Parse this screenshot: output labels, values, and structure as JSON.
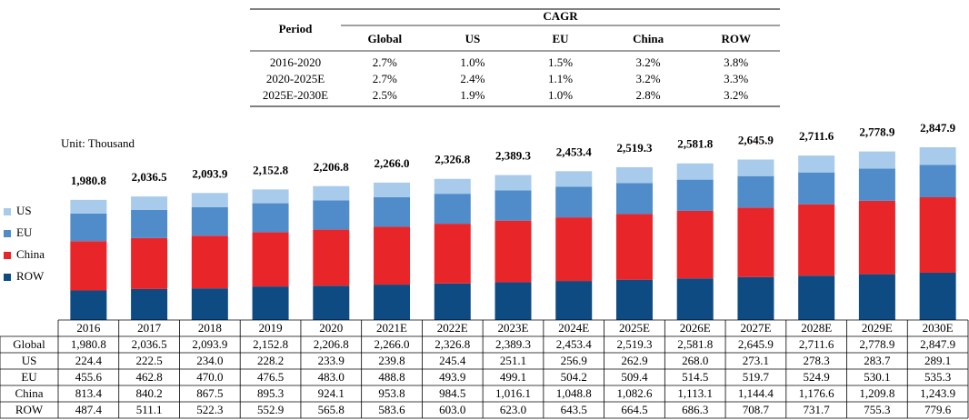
{
  "cagr_table": {
    "period_header": "Period",
    "group_header": "CAGR",
    "columns": [
      "Global",
      "US",
      "EU",
      "China",
      "ROW"
    ],
    "rows": [
      [
        "2016-2020",
        "2.7%",
        "1.0%",
        "1.5%",
        "3.2%",
        "3.8%"
      ],
      [
        "2020-2025E",
        "2.7%",
        "2.4%",
        "1.1%",
        "3.2%",
        "3.3%"
      ],
      [
        "2025E-2030E",
        "2.5%",
        "1.9%",
        "1.0%",
        "2.8%",
        "3.2%"
      ]
    ]
  },
  "chart_data": {
    "type": "stacked_bar",
    "unit_label": "Unit: Thousand",
    "categories": [
      "2016",
      "2017",
      "2018",
      "2019",
      "2020",
      "2021E",
      "2022E",
      "2023E",
      "2024E",
      "2025E",
      "2026E",
      "2027E",
      "2028E",
      "2029E",
      "2030E"
    ],
    "total": {
      "name": "Global",
      "values": [
        1980.8,
        2036.5,
        2093.9,
        2152.8,
        2206.8,
        2266.0,
        2326.8,
        2389.3,
        2453.4,
        2519.3,
        2581.8,
        2645.9,
        2711.6,
        2778.9,
        2847.9
      ],
      "value_labels": [
        "1,980.8",
        "2,036.5",
        "2,093.9",
        "2,152.8",
        "2,206.8",
        "2,266.0",
        "2,326.8",
        "2,389.3",
        "2,453.4",
        "2,519.3",
        "2,581.8",
        "2,645.9",
        "2,711.6",
        "2,778.9",
        "2,847.9"
      ]
    },
    "series": [
      {
        "name": "ROW",
        "color": "#0e4b82",
        "values": [
          487.4,
          511.1,
          522.3,
          552.9,
          565.8,
          583.6,
          603.0,
          623.0,
          643.5,
          664.5,
          686.3,
          708.7,
          731.7,
          755.3,
          779.6
        ],
        "value_labels": [
          "487.4",
          "511.1",
          "522.3",
          "552.9",
          "565.8",
          "583.6",
          "603.0",
          "623.0",
          "643.5",
          "664.5",
          "686.3",
          "708.7",
          "731.7",
          "755.3",
          "779.6"
        ]
      },
      {
        "name": "China",
        "color": "#e8262a",
        "values": [
          813.4,
          840.2,
          867.5,
          895.3,
          924.1,
          953.8,
          984.5,
          1016.1,
          1048.8,
          1082.6,
          1113.1,
          1144.4,
          1176.6,
          1209.8,
          1243.9
        ],
        "value_labels": [
          "813.4",
          "840.2",
          "867.5",
          "895.3",
          "924.1",
          "953.8",
          "984.5",
          "1,016.1",
          "1,048.8",
          "1,082.6",
          "1,113.1",
          "1,144.4",
          "1,176.6",
          "1,209.8",
          "1,243.9"
        ]
      },
      {
        "name": "EU",
        "color": "#4f8cc9",
        "values": [
          455.6,
          462.8,
          470.0,
          476.5,
          483.0,
          488.8,
          493.9,
          499.1,
          504.2,
          509.4,
          514.5,
          519.7,
          524.9,
          530.1,
          535.3
        ],
        "value_labels": [
          "455.6",
          "462.8",
          "470.0",
          "476.5",
          "483.0",
          "488.8",
          "493.9",
          "499.1",
          "504.2",
          "509.4",
          "514.5",
          "519.7",
          "524.9",
          "530.1",
          "535.3"
        ]
      },
      {
        "name": "US",
        "color": "#a8caeb",
        "values": [
          224.4,
          222.5,
          234.0,
          228.2,
          233.9,
          239.8,
          245.4,
          251.1,
          256.9,
          262.9,
          268.0,
          273.1,
          278.3,
          283.7,
          289.1
        ],
        "value_labels": [
          "224.4",
          "222.5",
          "234.0",
          "228.2",
          "233.9",
          "239.8",
          "245.4",
          "251.1",
          "256.9",
          "262.9",
          "268.0",
          "273.1",
          "278.3",
          "283.7",
          "289.1"
        ]
      }
    ]
  }
}
